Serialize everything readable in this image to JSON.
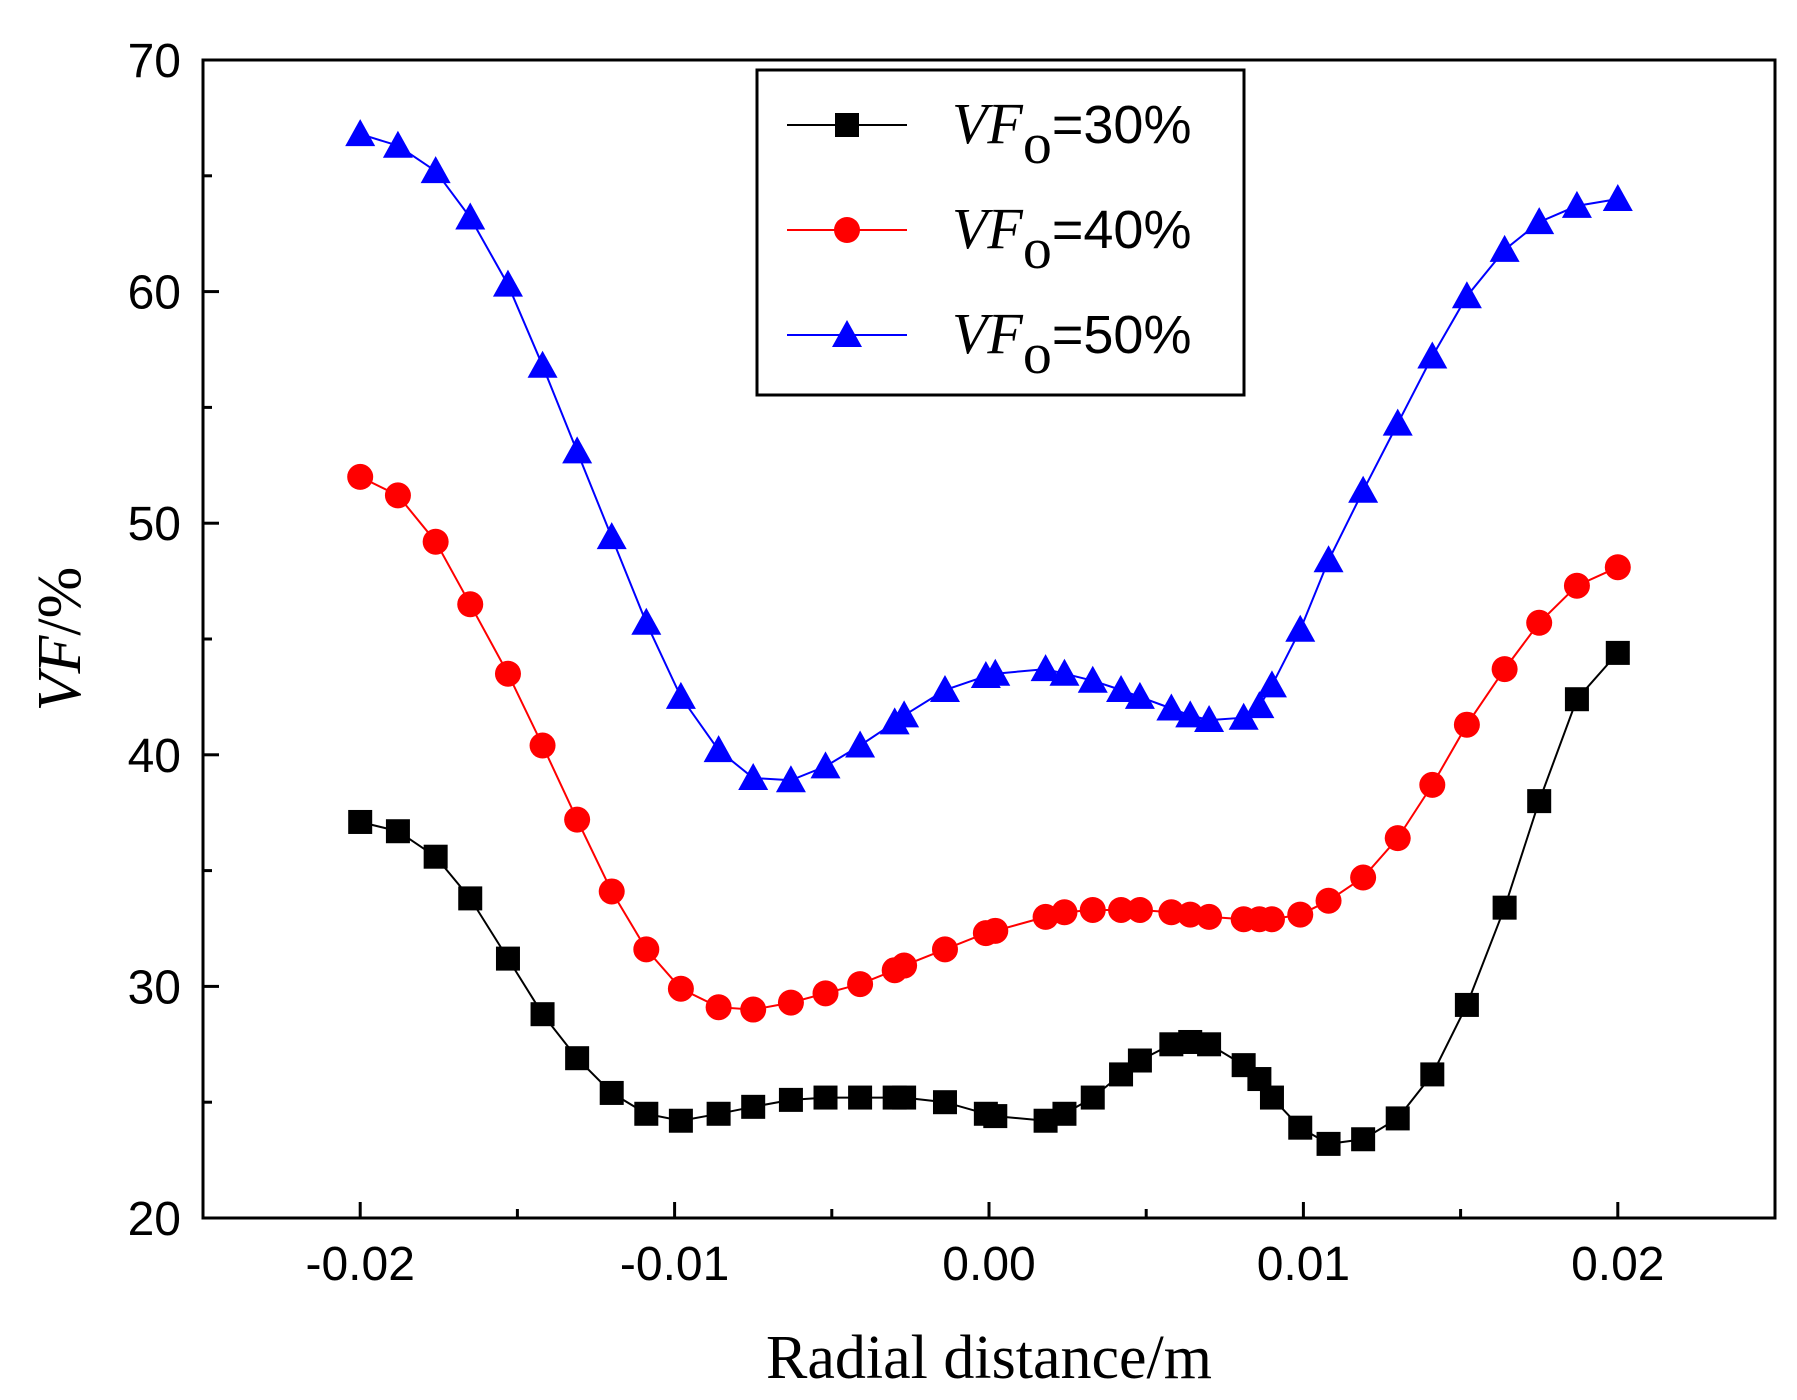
{
  "chart_data": {
    "type": "line",
    "title": "",
    "xlabel": "Radial distance/m",
    "ylabel": "VF/%",
    "ylabel_parts": {
      "var": "VF",
      "unit": "/%"
    },
    "xlim": [
      -0.025,
      0.025
    ],
    "ylim": [
      20,
      70
    ],
    "x_ticks": [
      -0.02,
      -0.01,
      0.0,
      0.01,
      0.02
    ],
    "x_tick_labels": [
      "-0.02",
      "-0.01",
      "0.00",
      "0.01",
      "0.02"
    ],
    "y_ticks": [
      20,
      30,
      40,
      50,
      60,
      70
    ],
    "y_tick_labels": [
      "20",
      "30",
      "40",
      "50",
      "60",
      "70"
    ],
    "grid": false,
    "legend_position": "top-center",
    "x": [
      -0.02,
      -0.0188,
      -0.0176,
      -0.0165,
      -0.0153,
      -0.0142,
      -0.0131,
      -0.012,
      -0.0109,
      -0.0098,
      -0.0086,
      -0.0075,
      -0.0063,
      -0.0052,
      -0.0041,
      -0.003,
      -0.0027,
      -0.0014,
      -0.0001,
      0.0002,
      0.0018,
      0.0024,
      0.0033,
      0.0042,
      0.0048,
      0.0058,
      0.0064,
      0.007,
      0.0081,
      0.0086,
      0.009,
      0.0099,
      0.0108,
      0.0119,
      0.013,
      0.0141,
      0.0152,
      0.0164,
      0.0175,
      0.0187,
      0.02
    ],
    "series": [
      {
        "name": "VFo=30%",
        "legend_var": "VF",
        "legend_sub": "o",
        "legend_value": "=30%",
        "color": "#000000",
        "marker": "square",
        "values": [
          37.1,
          36.7,
          35.6,
          33.8,
          31.2,
          28.8,
          26.9,
          25.4,
          24.5,
          24.2,
          24.5,
          24.8,
          25.1,
          25.2,
          25.2,
          25.2,
          25.2,
          25.0,
          24.5,
          24.4,
          24.2,
          24.5,
          25.2,
          26.2,
          26.8,
          27.5,
          27.6,
          27.5,
          26.6,
          26.0,
          25.2,
          23.9,
          23.2,
          23.4,
          24.3,
          26.2,
          29.2,
          33.4,
          38.0,
          42.4,
          44.4
        ]
      },
      {
        "name": "VFo=40%",
        "legend_var": "VF",
        "legend_sub": "o",
        "legend_value": "=40%",
        "color": "#ff0000",
        "marker": "circle",
        "values": [
          52.0,
          51.2,
          49.2,
          46.5,
          43.5,
          40.4,
          37.2,
          34.1,
          31.6,
          29.9,
          29.1,
          29.0,
          29.3,
          29.7,
          30.1,
          30.7,
          30.9,
          31.6,
          32.3,
          32.4,
          33.0,
          33.2,
          33.3,
          33.3,
          33.3,
          33.2,
          33.1,
          33.0,
          32.9,
          32.9,
          32.9,
          33.1,
          33.7,
          34.7,
          36.4,
          38.7,
          41.3,
          43.7,
          45.7,
          47.3,
          48.1
        ]
      },
      {
        "name": "VFo=50%",
        "legend_var": "VF",
        "legend_sub": "o",
        "legend_value": "=50%",
        "color": "#0000ff",
        "marker": "triangle",
        "values": [
          66.8,
          66.3,
          65.2,
          63.2,
          60.3,
          56.8,
          53.1,
          49.4,
          45.7,
          42.5,
          40.2,
          39.0,
          38.9,
          39.5,
          40.4,
          41.4,
          41.7,
          42.8,
          43.4,
          43.5,
          43.7,
          43.5,
          43.2,
          42.8,
          42.5,
          42.0,
          41.7,
          41.5,
          41.6,
          42.1,
          43.0,
          45.4,
          48.4,
          51.4,
          54.3,
          57.2,
          59.8,
          61.8,
          63.0,
          63.7,
          64.0
        ]
      }
    ]
  }
}
